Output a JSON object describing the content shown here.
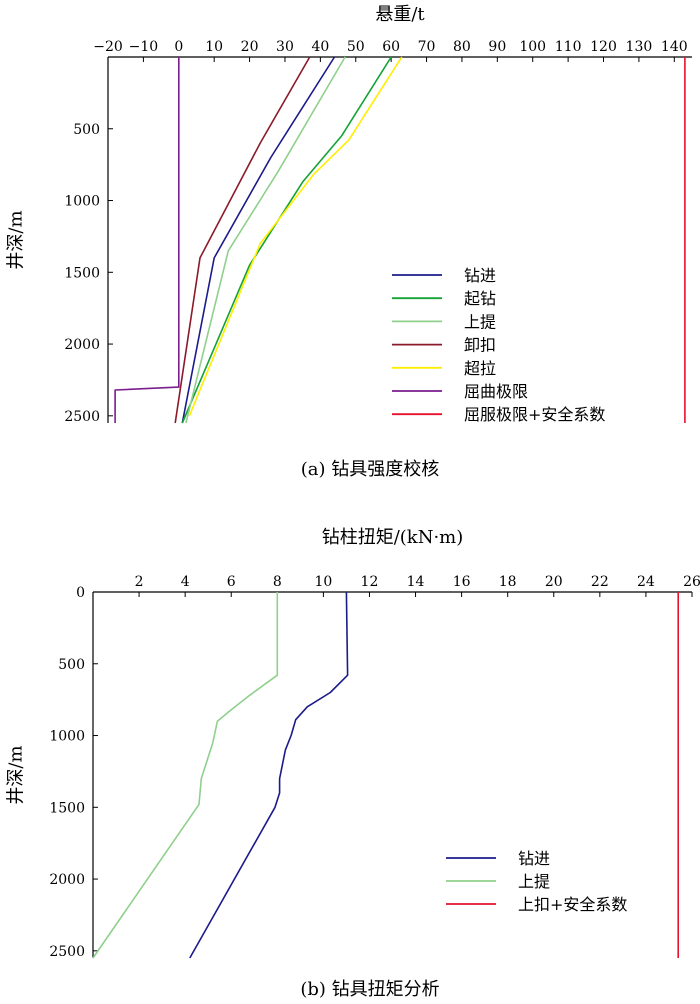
{
  "chart_data": [
    {
      "type": "line",
      "caption": "(a) 钻具强度校核",
      "xlabel": "悬重/t",
      "ylabel": "井深/m",
      "xlim": [
        -20,
        145
      ],
      "ylim": [
        0,
        2550
      ],
      "x_axis_position": "top",
      "y_inverted": true,
      "grid": false,
      "xticks": [
        -20,
        -10,
        0,
        10,
        20,
        30,
        40,
        50,
        60,
        70,
        80,
        90,
        100,
        110,
        120,
        130,
        140
      ],
      "yticks": [
        500,
        1000,
        1500,
        2000,
        2500
      ],
      "legend_position": "lower-right",
      "series": [
        {
          "name": "钻进",
          "color": "#1b1b8a",
          "points": [
            [
              44,
              0
            ],
            [
              26,
              700
            ],
            [
              10,
              1400
            ],
            [
              1,
              2550
            ]
          ]
        },
        {
          "name": "起钻",
          "color": "#13a335",
          "points": [
            [
              60,
              0
            ],
            [
              46,
              550
            ],
            [
              35,
              870
            ],
            [
              20,
              1450
            ],
            [
              1,
              2550
            ]
          ]
        },
        {
          "name": "上提",
          "color": "#8fd08c",
          "points": [
            [
              47,
              0
            ],
            [
              28,
              800
            ],
            [
              14,
              1350
            ],
            [
              2,
              2550
            ]
          ]
        },
        {
          "name": "卸扣",
          "color": "#8b1a2b",
          "points": [
            [
              37,
              0
            ],
            [
              23,
              600
            ],
            [
              6,
              1400
            ],
            [
              -1,
              2550
            ]
          ]
        },
        {
          "name": "超拉",
          "color": "#ffee00",
          "points": [
            [
              63,
              0
            ],
            [
              48,
              580
            ],
            [
              38,
              820
            ],
            [
              23,
              1300
            ],
            [
              3,
              2500
            ]
          ]
        },
        {
          "name": "屈曲极限",
          "color": "#7b1d8f",
          "points": [
            [
              0,
              0
            ],
            [
              0,
              2300
            ],
            [
              -18,
              2320
            ],
            [
              -18,
              2550
            ]
          ]
        },
        {
          "name": "屈服极限+安全系数",
          "color": "#e8112d",
          "points": [
            [
              143,
              0
            ],
            [
              143,
              2550
            ]
          ]
        }
      ]
    },
    {
      "type": "line",
      "caption": "(b) 钻具扭矩分析",
      "xlabel": "钻柱扭矩/(kN·m)",
      "ylabel": "井深/m",
      "xlim": [
        0,
        26
      ],
      "ylim": [
        0,
        2550
      ],
      "x_axis_position": "top",
      "y_inverted": true,
      "grid": false,
      "xticks": [
        2,
        4,
        6,
        8,
        10,
        12,
        14,
        16,
        18,
        20,
        22,
        24,
        26
      ],
      "yticks": [
        0,
        500,
        1000,
        1500,
        2000,
        2500
      ],
      "legend_position": "lower-right",
      "series": [
        {
          "name": "钻进",
          "color": "#1b1b8a",
          "points": [
            [
              11,
              0
            ],
            [
              11.05,
              580
            ],
            [
              10.3,
              700
            ],
            [
              9.3,
              800
            ],
            [
              8.8,
              890
            ],
            [
              8.6,
              1000
            ],
            [
              8.35,
              1100
            ],
            [
              8.1,
              1300
            ],
            [
              8.1,
              1400
            ],
            [
              7.9,
              1500
            ],
            [
              4.2,
              2550
            ]
          ]
        },
        {
          "name": "上提",
          "color": "#8fd08c",
          "points": [
            [
              8,
              0
            ],
            [
              8,
              580
            ],
            [
              6.8,
              720
            ],
            [
              6.0,
              820
            ],
            [
              5.4,
              900
            ],
            [
              5.2,
              1050
            ],
            [
              4.9,
              1200
            ],
            [
              4.7,
              1300
            ],
            [
              4.6,
              1480
            ],
            [
              0,
              2550
            ]
          ]
        },
        {
          "name": "上扣+安全系数",
          "color": "#e8112d",
          "points": [
            [
              25.4,
              0
            ],
            [
              25.4,
              2550
            ]
          ]
        }
      ]
    }
  ]
}
